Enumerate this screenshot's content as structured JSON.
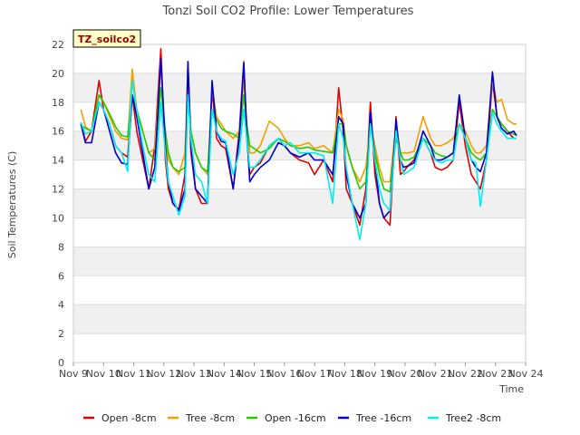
{
  "chart_data": {
    "type": "line",
    "title": "Tonzi Soil CO2 Profile: Lower Temperatures",
    "xlabel": "Time",
    "ylabel": "Soil Temperatures (C)",
    "badge": "TZ_soilco2",
    "xlim": [
      9,
      24
    ],
    "ylim": [
      0,
      22
    ],
    "yticks": [
      0,
      2,
      4,
      6,
      8,
      10,
      12,
      14,
      16,
      18,
      20,
      22
    ],
    "xticks": [
      {
        "x": 9,
        "label": "Nov 9"
      },
      {
        "x": 10,
        "label": "Nov 10"
      },
      {
        "x": 11,
        "label": "Nov 11"
      },
      {
        "x": 12,
        "label": "Nov 12"
      },
      {
        "x": 13,
        "label": "Nov 13"
      },
      {
        "x": 14,
        "label": "Nov 14"
      },
      {
        "x": 15,
        "label": "Nov 15"
      },
      {
        "x": 16,
        "label": "Nov 16"
      },
      {
        "x": 17,
        "label": "Nov 17"
      },
      {
        "x": 18,
        "label": "Nov 18"
      },
      {
        "x": 19,
        "label": "Nov 19"
      },
      {
        "x": 20,
        "label": "Nov 20"
      },
      {
        "x": 21,
        "label": "Nov 21"
      },
      {
        "x": 22,
        "label": "Nov 22"
      },
      {
        "x": 23,
        "label": "Nov 23"
      },
      {
        "x": 24,
        "label": "Nov 24"
      }
    ],
    "grid": true,
    "legend_position": "bottom",
    "series": [
      {
        "name": "Open -8cm",
        "color": "#dd0000",
        "x": [
          9.25,
          9.4,
          9.6,
          9.85,
          10.0,
          10.2,
          10.4,
          10.6,
          10.8,
          10.95,
          11.1,
          11.3,
          11.5,
          11.7,
          11.9,
          12.05,
          12.15,
          12.3,
          12.5,
          12.7,
          12.8,
          12.9,
          13.05,
          13.25,
          13.45,
          13.6,
          13.75,
          13.9,
          14.05,
          14.3,
          14.5,
          14.65,
          14.75,
          14.85,
          15.0,
          15.2,
          15.5,
          15.8,
          16.0,
          16.2,
          16.5,
          16.8,
          17.0,
          17.3,
          17.6,
          17.8,
          17.95,
          18.05,
          18.25,
          18.5,
          18.7,
          18.85,
          19.0,
          19.15,
          19.3,
          19.5,
          19.7,
          19.85,
          19.95,
          20.1,
          20.3,
          20.6,
          20.85,
          21.0,
          21.2,
          21.4,
          21.6,
          21.8,
          22.0,
          22.2,
          22.35,
          22.5,
          22.7,
          22.9,
          23.05,
          23.2,
          23.4,
          23.6,
          23.7
        ],
        "y": [
          16.6,
          15.3,
          16.0,
          19.5,
          17.5,
          16.5,
          15.0,
          14.5,
          14.2,
          18.5,
          16.0,
          14.0,
          12.0,
          15.0,
          21.7,
          14.0,
          12.0,
          11.0,
          10.6,
          13.0,
          20.8,
          14.5,
          12.0,
          11.0,
          11.0,
          19.0,
          15.5,
          15.0,
          14.8,
          12.0,
          16.0,
          20.8,
          15.5,
          13.0,
          13.5,
          13.8,
          15.0,
          15.5,
          15.0,
          14.5,
          14.0,
          13.8,
          13.0,
          14.0,
          12.5,
          19.0,
          16.0,
          12.0,
          11.0,
          9.5,
          12.0,
          18.0,
          13.0,
          11.0,
          10.0,
          9.5,
          17.0,
          13.0,
          13.2,
          13.6,
          14.0,
          15.5,
          14.5,
          13.5,
          13.3,
          13.5,
          14.0,
          18.0,
          15.0,
          13.0,
          12.5,
          12.0,
          14.0,
          19.5,
          17.0,
          16.5,
          16.0,
          15.5,
          15.5
        ]
      },
      {
        "name": "Tree -8cm",
        "color": "#f0a000",
        "x": [
          9.25,
          9.4,
          9.6,
          9.85,
          10.0,
          10.2,
          10.4,
          10.6,
          10.8,
          10.95,
          11.1,
          11.3,
          11.5,
          11.7,
          11.9,
          12.05,
          12.15,
          12.3,
          12.5,
          12.7,
          12.8,
          12.9,
          13.05,
          13.25,
          13.45,
          13.6,
          13.75,
          13.9,
          14.05,
          14.3,
          14.5,
          14.65,
          14.75,
          14.85,
          15.0,
          15.2,
          15.5,
          15.8,
          16.0,
          16.2,
          16.5,
          16.8,
          17.0,
          17.3,
          17.6,
          17.8,
          17.95,
          18.05,
          18.25,
          18.5,
          18.7,
          18.85,
          19.0,
          19.15,
          19.3,
          19.5,
          19.7,
          19.85,
          19.95,
          20.1,
          20.3,
          20.6,
          20.85,
          21.0,
          21.2,
          21.4,
          21.6,
          21.8,
          22.0,
          22.2,
          22.35,
          22.5,
          22.7,
          22.9,
          23.05,
          23.2,
          23.4,
          23.6,
          23.7
        ],
        "y": [
          17.5,
          16.3,
          16.0,
          18.5,
          18.0,
          17.0,
          16.0,
          15.5,
          15.4,
          20.3,
          17.5,
          16.0,
          14.5,
          14.8,
          20.5,
          15.5,
          14.0,
          13.5,
          13.0,
          14.5,
          20.0,
          16.0,
          14.5,
          13.5,
          13.0,
          19.0,
          17.0,
          16.5,
          16.0,
          15.5,
          16.0,
          19.5,
          16.5,
          14.5,
          14.5,
          15.0,
          16.7,
          16.2,
          15.5,
          15.0,
          15.0,
          15.2,
          14.8,
          15.0,
          14.5,
          17.5,
          16.8,
          15.0,
          13.5,
          12.5,
          13.5,
          16.5,
          15.0,
          13.5,
          12.5,
          12.5,
          16.5,
          14.5,
          14.5,
          14.5,
          14.6,
          17.0,
          15.5,
          15.0,
          15.0,
          15.2,
          15.5,
          16.5,
          16.0,
          15.0,
          14.5,
          14.5,
          15.0,
          19.5,
          18.0,
          18.2,
          16.8,
          16.5,
          16.5
        ]
      },
      {
        "name": "Open -16cm",
        "color": "#22cc00",
        "x": [
          9.25,
          9.4,
          9.6,
          9.85,
          10.0,
          10.2,
          10.4,
          10.6,
          10.8,
          10.95,
          11.1,
          11.3,
          11.5,
          11.7,
          11.9,
          12.05,
          12.15,
          12.3,
          12.5,
          12.7,
          12.8,
          12.9,
          13.05,
          13.25,
          13.45,
          13.6,
          13.75,
          13.9,
          14.05,
          14.3,
          14.5,
          14.65,
          14.75,
          14.85,
          15.0,
          15.2,
          15.5,
          15.8,
          16.0,
          16.2,
          16.5,
          16.8,
          17.0,
          17.3,
          17.6,
          17.8,
          17.95,
          18.05,
          18.25,
          18.5,
          18.7,
          18.85,
          19.0,
          19.15,
          19.3,
          19.5,
          19.7,
          19.85,
          19.95,
          20.1,
          20.3,
          20.6,
          20.85,
          21.0,
          21.2,
          21.4,
          21.6,
          21.8,
          22.0,
          22.2,
          22.35,
          22.5,
          22.7,
          22.9,
          23.05,
          23.2,
          23.4,
          23.6,
          23.7
        ],
        "y": [
          16.4,
          16.2,
          16.0,
          18.5,
          18.0,
          17.2,
          16.3,
          15.7,
          15.6,
          18.5,
          17.5,
          16.0,
          14.5,
          14.0,
          19.0,
          16.0,
          14.5,
          13.5,
          13.2,
          13.5,
          18.0,
          16.0,
          14.5,
          13.5,
          13.2,
          17.5,
          16.8,
          16.2,
          16.0,
          15.8,
          15.5,
          18.5,
          16.5,
          15.0,
          14.8,
          14.5,
          14.8,
          15.5,
          15.3,
          15.0,
          14.8,
          14.9,
          14.7,
          14.6,
          14.5,
          16.5,
          16.5,
          15.0,
          13.5,
          12.0,
          12.5,
          16.5,
          14.5,
          13.0,
          12.0,
          11.8,
          15.5,
          14.5,
          14.0,
          14.0,
          14.2,
          15.5,
          15.0,
          14.5,
          14.3,
          14.2,
          14.5,
          16.5,
          15.5,
          14.5,
          14.2,
          14.0,
          14.5,
          17.5,
          17.0,
          16.5,
          16.0,
          15.8,
          15.7
        ]
      },
      {
        "name": "Tree -16cm",
        "color": "#0000cc",
        "x": [
          9.25,
          9.4,
          9.6,
          9.85,
          10.0,
          10.2,
          10.4,
          10.6,
          10.8,
          10.95,
          11.1,
          11.3,
          11.5,
          11.7,
          11.9,
          12.05,
          12.15,
          12.3,
          12.5,
          12.7,
          12.8,
          12.9,
          13.05,
          13.25,
          13.45,
          13.6,
          13.75,
          13.9,
          14.05,
          14.3,
          14.5,
          14.65,
          14.75,
          14.85,
          15.0,
          15.2,
          15.5,
          15.8,
          16.0,
          16.2,
          16.5,
          16.8,
          17.0,
          17.3,
          17.6,
          17.8,
          17.95,
          18.05,
          18.25,
          18.5,
          18.7,
          18.85,
          19.0,
          19.15,
          19.3,
          19.5,
          19.7,
          19.85,
          19.95,
          20.1,
          20.3,
          20.6,
          20.85,
          21.0,
          21.2,
          21.4,
          21.6,
          21.8,
          22.0,
          22.2,
          22.35,
          22.5,
          22.7,
          22.9,
          23.05,
          23.2,
          23.4,
          23.6,
          23.7
        ],
        "y": [
          16.5,
          15.2,
          15.2,
          18.0,
          17.5,
          16.0,
          14.5,
          13.8,
          13.7,
          18.5,
          17.0,
          14.5,
          12.0,
          13.5,
          21.0,
          15.0,
          12.5,
          11.0,
          10.5,
          12.0,
          20.8,
          15.0,
          12.0,
          11.5,
          11.0,
          19.5,
          16.0,
          15.3,
          15.2,
          12.0,
          15.5,
          20.7,
          16.0,
          12.5,
          13.0,
          13.5,
          14.0,
          15.2,
          15.0,
          14.5,
          14.2,
          14.5,
          14.0,
          14.0,
          13.0,
          17.0,
          16.5,
          13.0,
          11.0,
          10.0,
          11.0,
          17.3,
          14.0,
          11.0,
          10.0,
          10.5,
          16.8,
          14.0,
          13.5,
          13.6,
          13.8,
          16.0,
          15.0,
          14.0,
          14.0,
          14.2,
          14.5,
          18.5,
          15.5,
          14.0,
          13.5,
          13.2,
          14.5,
          20.1,
          17.0,
          16.2,
          15.8,
          16.0,
          15.7
        ]
      },
      {
        "name": "Tree2 -8cm",
        "color": "#00eeee",
        "x": [
          9.25,
          9.4,
          9.6,
          9.85,
          10.0,
          10.2,
          10.4,
          10.6,
          10.8,
          10.95,
          11.1,
          11.3,
          11.5,
          11.7,
          11.9,
          12.05,
          12.15,
          12.3,
          12.5,
          12.7,
          12.8,
          12.9,
          13.05,
          13.25,
          13.45,
          13.6,
          13.75,
          13.9,
          14.05,
          14.3,
          14.5,
          14.65,
          14.75,
          14.85,
          15.0,
          15.2,
          15.5,
          15.8,
          16.0,
          16.2,
          16.5,
          16.8,
          17.0,
          17.3,
          17.6,
          17.8,
          17.95,
          18.05,
          18.25,
          18.5,
          18.7,
          18.85,
          19.0,
          19.15,
          19.3,
          19.5,
          19.7,
          19.85,
          19.95,
          20.1,
          20.3,
          20.6,
          20.85,
          21.0,
          21.2,
          21.4,
          21.6,
          21.8,
          22.0,
          22.2,
          22.35,
          22.5,
          22.7,
          22.9,
          23.05,
          23.2,
          23.4,
          23.6,
          23.7
        ],
        "y": [
          16.6,
          15.8,
          16.0,
          18.0,
          17.5,
          16.5,
          15.0,
          14.5,
          13.2,
          19.5,
          17.5,
          15.0,
          13.0,
          12.5,
          18.0,
          14.5,
          12.5,
          11.5,
          10.2,
          11.5,
          18.5,
          15.5,
          13.0,
          12.5,
          11.0,
          17.5,
          16.0,
          15.5,
          15.3,
          13.0,
          14.5,
          17.5,
          15.5,
          13.5,
          13.5,
          14.0,
          15.0,
          15.5,
          15.0,
          15.2,
          14.5,
          14.5,
          14.5,
          14.3,
          11.0,
          16.5,
          15.5,
          13.5,
          11.0,
          8.5,
          11.0,
          16.5,
          14.0,
          12.0,
          11.0,
          10.5,
          16.0,
          14.0,
          13.0,
          13.2,
          13.5,
          15.5,
          14.5,
          14.0,
          13.8,
          14.0,
          14.0,
          16.5,
          15.5,
          14.0,
          13.8,
          10.8,
          14.0,
          17.3,
          16.5,
          16.0,
          15.5,
          15.5,
          15.5
        ]
      }
    ]
  }
}
